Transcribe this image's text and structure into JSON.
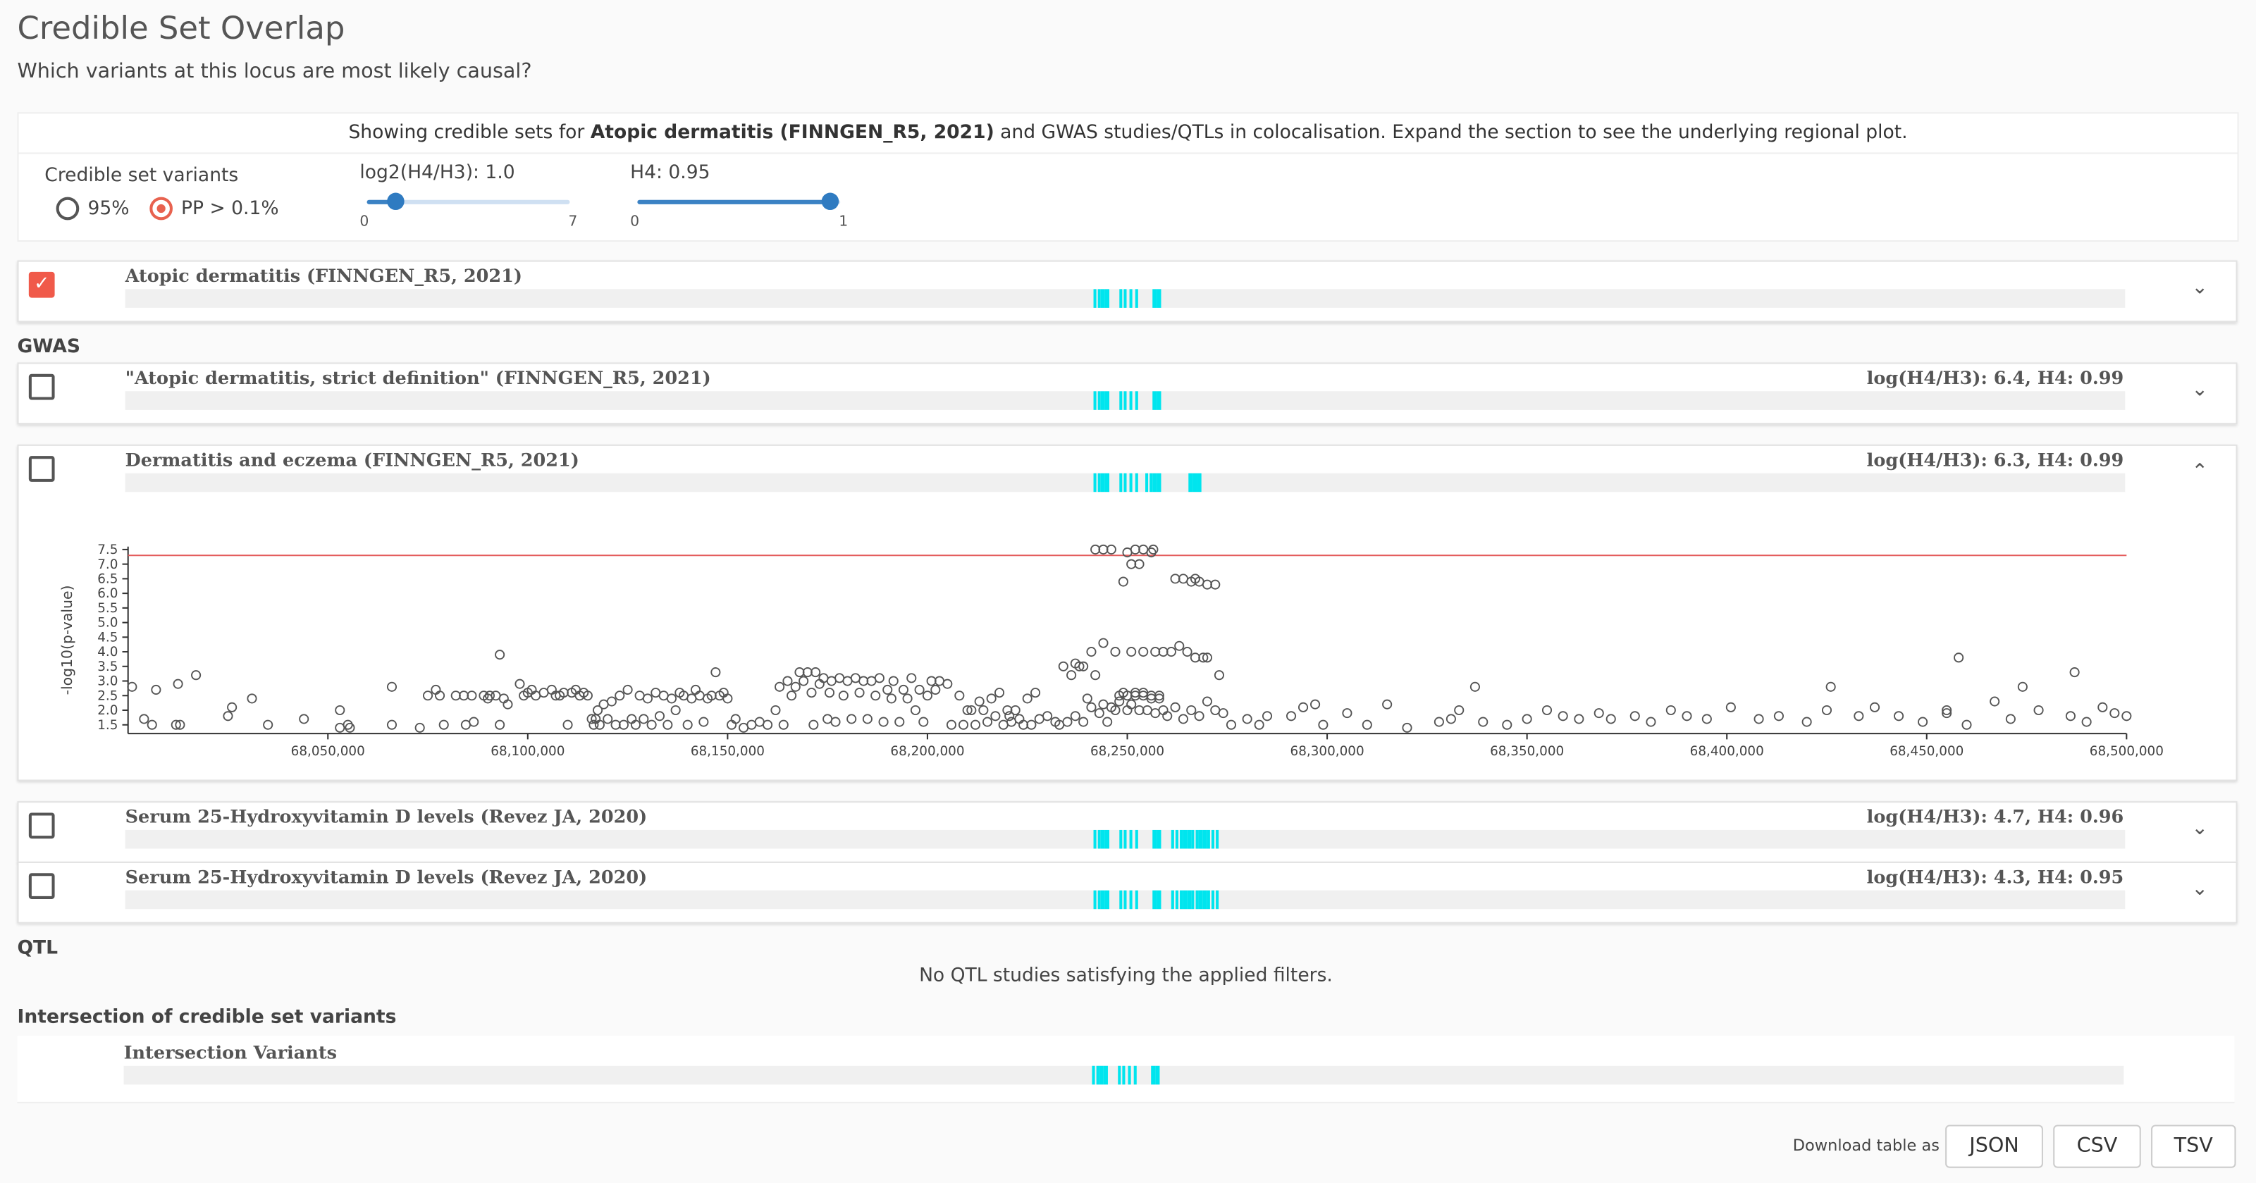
{
  "header": {
    "title": "Credible Set Overlap",
    "subtitle": "Which variants at this locus are most likely causal?"
  },
  "description": {
    "prefix": "Showing credible sets for ",
    "study": "Atopic dermatitis (FINNGEN_R5, 2021)",
    "suffix": " and GWAS studies/QTLs in colocalisation. Expand the section to see the underlying regional plot."
  },
  "controls": {
    "credible_set_label": "Credible set variants",
    "option_95": "95%",
    "option_pp": "PP > 0.1%",
    "selected": "PP > 0.1%",
    "log2_label": "log2(H4/H3): 1.0",
    "log2_value": 1.0,
    "log2_min": "0",
    "log2_max": "7",
    "h4_label": "H4: 0.95",
    "h4_value": 0.95,
    "h4_min": "0",
    "h4_max": "1"
  },
  "colors": {
    "track": "#00e5ee",
    "accent": "#f05a4a",
    "slider": "#2f7bc1",
    "threshold": "#e35a5a"
  },
  "lead_row": {
    "name": "Atopic dermatitis (FINNGEN_R5, 2021)",
    "checked": true,
    "bars": [
      68242000,
      68243000,
      68244000,
      68245000,
      68248500,
      68249500,
      68251000,
      68252500,
      68257000,
      68258000
    ]
  },
  "sections": {
    "gwas": "GWAS",
    "qtl": "QTL",
    "qtl_empty": "No QTL studies satisfying the applied filters.",
    "intersection": "Intersection of credible set variants"
  },
  "gwas_rows": [
    {
      "name": "\"Atopic dermatitis, strict definition\" (FINNGEN_R5, 2021)",
      "stat": "log(H4/H3): 6.4, H4: 0.99",
      "bars": [
        68242000,
        68243000,
        68244000,
        68245000,
        68248500,
        68249500,
        68251000,
        68252500,
        68257000,
        68258000
      ],
      "expanded": false
    },
    {
      "name": "Dermatitis and eczema (FINNGEN_R5, 2021)",
      "stat": "log(H4/H3): 6.3, H4: 0.99",
      "bars": [
        68242000,
        68243000,
        68244000,
        68245000,
        68248500,
        68249500,
        68251000,
        68252500,
        68255000,
        68256000,
        68257000,
        68258000,
        68266000,
        68267000,
        68268000
      ],
      "expanded": true
    },
    {
      "name": "Serum 25-Hydroxyvitamin D levels (Revez JA, 2020)",
      "stat": "log(H4/H3): 4.7, H4: 0.96",
      "bars": [
        68242000,
        68243000,
        68244000,
        68245000,
        68248500,
        68249500,
        68251000,
        68252500,
        68257000,
        68258000,
        68261500,
        68262500,
        68263500,
        68264500,
        68265500,
        68266500,
        68267500,
        68268500,
        68269500,
        68270500,
        68271500,
        68272500
      ],
      "expanded": false
    },
    {
      "name": "Serum 25-Hydroxyvitamin D levels (Revez JA, 2020)",
      "stat": "log(H4/H3): 4.3, H4: 0.95",
      "bars": [
        68242000,
        68243000,
        68244000,
        68245000,
        68248500,
        68249500,
        68251000,
        68252500,
        68257000,
        68258000,
        68261500,
        68262500,
        68263500,
        68264500,
        68265500,
        68266500,
        68267500,
        68268500,
        68269500,
        68270500,
        68271500,
        68272500
      ],
      "expanded": false
    }
  ],
  "intersection_row": {
    "name": "Intersection Variants",
    "bars": [
      68242000,
      68243000,
      68244000,
      68245000,
      68248500,
      68249500,
      68251000,
      68252500,
      68257000,
      68258000
    ]
  },
  "footer": {
    "download_label": "Download table as",
    "buttons": [
      "JSON",
      "CSV",
      "TSV"
    ]
  },
  "chart_data": {
    "type": "scatter",
    "xlabel": "",
    "ylabel": "-log10(p-value)",
    "xlim": [
      68000000,
      68500000
    ],
    "ylim": [
      1.2,
      7.6
    ],
    "xticks": [
      68050000,
      68100000,
      68150000,
      68200000,
      68250000,
      68300000,
      68350000,
      68400000,
      68450000,
      68500000
    ],
    "xtick_labels": [
      "68,050,000",
      "68,100,000",
      "68,150,000",
      "68,200,000",
      "68,250,000",
      "68,300,000",
      "68,350,000",
      "68,400,000",
      "68,450,000",
      "68,500,000"
    ],
    "yticks": [
      "1.5",
      "2.0",
      "2.5",
      "3.0",
      "3.5",
      "4.0",
      "4.5",
      "5.0",
      "5.5",
      "6.0",
      "6.5",
      "7.0",
      "7.5"
    ],
    "threshold": 7.3,
    "points": [
      [
        68001000,
        2.8
      ],
      [
        68004000,
        1.7
      ],
      [
        68006000,
        1.5
      ],
      [
        68007000,
        2.7
      ],
      [
        68012000,
        1.5
      ],
      [
        68012500,
        2.9
      ],
      [
        68013000,
        1.5
      ],
      [
        68017000,
        3.2
      ],
      [
        68025000,
        1.8
      ],
      [
        68026000,
        2.1
      ],
      [
        68031000,
        2.4
      ],
      [
        68035000,
        1.5
      ],
      [
        68044000,
        1.7
      ],
      [
        68053000,
        1.4
      ],
      [
        68053000,
        2.0
      ],
      [
        68055000,
        1.5
      ],
      [
        68055500,
        1.4
      ],
      [
        68066000,
        1.5
      ],
      [
        68066000,
        2.8
      ],
      [
        68073000,
        1.4
      ],
      [
        68075000,
        2.5
      ],
      [
        68077000,
        2.7
      ],
      [
        68078000,
        2.5
      ],
      [
        68079000,
        1.5
      ],
      [
        68082000,
        2.5
      ],
      [
        68084000,
        2.5
      ],
      [
        68084500,
        1.5
      ],
      [
        68086000,
        2.5
      ],
      [
        68086500,
        1.6
      ],
      [
        68089000,
        2.5
      ],
      [
        68090000,
        2.4
      ],
      [
        68090500,
        2.5
      ],
      [
        68092000,
        2.5
      ],
      [
        68093000,
        1.5
      ],
      [
        68093000,
        3.9
      ],
      [
        68094000,
        2.4
      ],
      [
        68095000,
        2.2
      ],
      [
        68098000,
        2.9
      ],
      [
        68099000,
        2.5
      ],
      [
        68100000,
        2.6
      ],
      [
        68101000,
        2.7
      ],
      [
        68102000,
        2.5
      ],
      [
        68104000,
        2.6
      ],
      [
        68106000,
        2.7
      ],
      [
        68107000,
        2.5
      ],
      [
        68108000,
        2.5
      ],
      [
        68109000,
        2.6
      ],
      [
        68110000,
        1.5
      ],
      [
        68111000,
        2.6
      ],
      [
        68112000,
        2.7
      ],
      [
        68113000,
        2.5
      ],
      [
        68114000,
        2.6
      ],
      [
        68115000,
        2.5
      ],
      [
        68116000,
        1.7
      ],
      [
        68116500,
        1.5
      ],
      [
        68117000,
        1.7
      ],
      [
        68117500,
        2.0
      ],
      [
        68118000,
        1.5
      ],
      [
        68119000,
        2.2
      ],
      [
        68120000,
        1.7
      ],
      [
        68121000,
        2.3
      ],
      [
        68122000,
        1.5
      ],
      [
        68123000,
        2.5
      ],
      [
        68124000,
        1.5
      ],
      [
        68125000,
        2.7
      ],
      [
        68126000,
        1.7
      ],
      [
        68127000,
        1.5
      ],
      [
        68128000,
        2.5
      ],
      [
        68129000,
        1.7
      ],
      [
        68130000,
        2.4
      ],
      [
        68131000,
        1.5
      ],
      [
        68132000,
        2.6
      ],
      [
        68133000,
        1.8
      ],
      [
        68134000,
        2.5
      ],
      [
        68135000,
        1.5
      ],
      [
        68136000,
        2.4
      ],
      [
        68137000,
        2.0
      ],
      [
        68138000,
        2.6
      ],
      [
        68139000,
        2.5
      ],
      [
        68140000,
        1.5
      ],
      [
        68141000,
        2.4
      ],
      [
        68142000,
        2.7
      ],
      [
        68143000,
        2.5
      ],
      [
        68144000,
        1.6
      ],
      [
        68145000,
        2.4
      ],
      [
        68146000,
        2.5
      ],
      [
        68147000,
        3.3
      ],
      [
        68148000,
        2.5
      ],
      [
        68149000,
        2.6
      ],
      [
        68150000,
        2.4
      ],
      [
        68151000,
        1.5
      ],
      [
        68152000,
        1.7
      ],
      [
        68154000,
        1.4
      ],
      [
        68156000,
        1.5
      ],
      [
        68158000,
        1.6
      ],
      [
        68160000,
        1.5
      ],
      [
        68162000,
        2.0
      ],
      [
        68163000,
        2.8
      ],
      [
        68164000,
        1.5
      ],
      [
        68165000,
        3.0
      ],
      [
        68166000,
        2.5
      ],
      [
        68167000,
        2.8
      ],
      [
        68168000,
        3.3
      ],
      [
        68169000,
        3.0
      ],
      [
        68170000,
        3.3
      ],
      [
        68171000,
        2.6
      ],
      [
        68171500,
        1.5
      ],
      [
        68172000,
        3.3
      ],
      [
        68173000,
        2.9
      ],
      [
        68174000,
        3.1
      ],
      [
        68175000,
        1.7
      ],
      [
        68175500,
        2.6
      ],
      [
        68176000,
        3.0
      ],
      [
        68177000,
        1.6
      ],
      [
        68178000,
        3.1
      ],
      [
        68179000,
        2.5
      ],
      [
        68180000,
        3.0
      ],
      [
        68181000,
        1.7
      ],
      [
        68182000,
        3.1
      ],
      [
        68183000,
        2.6
      ],
      [
        68184000,
        3.0
      ],
      [
        68185000,
        1.7
      ],
      [
        68186000,
        3.0
      ],
      [
        68187000,
        2.5
      ],
      [
        68188000,
        3.1
      ],
      [
        68189000,
        1.6
      ],
      [
        68190000,
        2.7
      ],
      [
        68191000,
        2.4
      ],
      [
        68191500,
        3.0
      ],
      [
        68193000,
        1.6
      ],
      [
        68194000,
        2.7
      ],
      [
        68195000,
        2.4
      ],
      [
        68196000,
        3.1
      ],
      [
        68197000,
        2.0
      ],
      [
        68198000,
        2.7
      ],
      [
        68199000,
        1.6
      ],
      [
        68200000,
        2.5
      ],
      [
        68201000,
        3.0
      ],
      [
        68202000,
        2.7
      ],
      [
        68203000,
        3.0
      ],
      [
        68205000,
        2.9
      ],
      [
        68206000,
        1.5
      ],
      [
        68208000,
        2.5
      ],
      [
        68209000,
        1.5
      ],
      [
        68210000,
        2.0
      ],
      [
        68211000,
        2.0
      ],
      [
        68212000,
        1.5
      ],
      [
        68213000,
        2.3
      ],
      [
        68214000,
        2.0
      ],
      [
        68215000,
        1.6
      ],
      [
        68216000,
        2.4
      ],
      [
        68217000,
        1.8
      ],
      [
        68218000,
        2.6
      ],
      [
        68219000,
        1.5
      ],
      [
        68220000,
        2.0
      ],
      [
        68220500,
        1.8
      ],
      [
        68221000,
        1.6
      ],
      [
        68222000,
        2.0
      ],
      [
        68223000,
        1.7
      ],
      [
        68224000,
        1.5
      ],
      [
        68225000,
        2.4
      ],
      [
        68226000,
        1.5
      ],
      [
        68227000,
        2.6
      ],
      [
        68228000,
        1.7
      ],
      [
        68230000,
        1.8
      ],
      [
        68232000,
        1.6
      ],
      [
        68233000,
        1.5
      ],
      [
        68234000,
        3.5
      ],
      [
        68235000,
        1.6
      ],
      [
        68236000,
        3.2
      ],
      [
        68237000,
        1.8
      ],
      [
        68238000,
        3.5
      ],
      [
        68239000,
        1.6
      ],
      [
        68240000,
        2.4
      ],
      [
        68241000,
        2.1
      ],
      [
        68242000,
        3.2
      ],
      [
        68243000,
        1.9
      ],
      [
        68244000,
        2.2
      ],
      [
        68245000,
        1.6
      ],
      [
        68246000,
        2.1
      ],
      [
        68247000,
        2.0
      ],
      [
        68248000,
        2.3
      ],
      [
        68249000,
        2.6
      ],
      [
        68250000,
        2.0
      ],
      [
        68251000,
        2.2
      ],
      [
        68252000,
        2.6
      ],
      [
        68253000,
        2.0
      ],
      [
        68254000,
        2.6
      ],
      [
        68255000,
        2.0
      ],
      [
        68256000,
        2.4
      ],
      [
        68257000,
        1.9
      ],
      [
        68258000,
        2.4
      ],
      [
        68259000,
        2.0
      ],
      [
        68260000,
        1.8
      ],
      [
        68262000,
        2.1
      ],
      [
        68264000,
        1.7
      ],
      [
        68266000,
        2.0
      ],
      [
        68268000,
        1.8
      ],
      [
        68270000,
        2.3
      ],
      [
        68272000,
        2.0
      ],
      [
        68274000,
        1.9
      ],
      [
        68276000,
        1.5
      ],
      [
        68280000,
        1.7
      ],
      [
        68283000,
        1.5
      ],
      [
        68285000,
        1.8
      ],
      [
        68291000,
        1.8
      ],
      [
        68294000,
        2.1
      ],
      [
        68297000,
        2.2
      ],
      [
        68299000,
        1.5
      ],
      [
        68305000,
        1.9
      ],
      [
        68310000,
        1.5
      ],
      [
        68315000,
        2.2
      ],
      [
        68320000,
        1.4
      ],
      [
        68328000,
        1.6
      ],
      [
        68331000,
        1.7
      ],
      [
        68333000,
        2.0
      ],
      [
        68339000,
        1.6
      ],
      [
        68345000,
        1.5
      ],
      [
        68350000,
        1.7
      ],
      [
        68355000,
        2.0
      ],
      [
        68359000,
        1.8
      ],
      [
        68363000,
        1.7
      ],
      [
        68368000,
        1.9
      ],
      [
        68371000,
        1.7
      ],
      [
        68377000,
        1.8
      ],
      [
        68381000,
        1.6
      ],
      [
        68386000,
        2.0
      ],
      [
        68390000,
        1.8
      ],
      [
        68395000,
        1.7
      ],
      [
        68401000,
        2.1
      ],
      [
        68408000,
        1.7
      ],
      [
        68413000,
        1.8
      ],
      [
        68420000,
        1.6
      ],
      [
        68425000,
        2.0
      ],
      [
        68433000,
        1.8
      ],
      [
        68437000,
        2.1
      ],
      [
        68443000,
        1.8
      ],
      [
        68449000,
        1.6
      ],
      [
        68455000,
        2.0
      ],
      [
        68460000,
        1.5
      ],
      [
        68467000,
        2.3
      ],
      [
        68471000,
        1.7
      ],
      [
        68478000,
        2.0
      ],
      [
        68486000,
        1.8
      ],
      [
        68490000,
        1.6
      ],
      [
        68494000,
        2.1
      ],
      [
        68497000,
        1.9
      ],
      [
        68500000,
        1.8
      ],
      [
        68242000,
        7.5
      ],
      [
        68244000,
        7.5
      ],
      [
        68246000,
        7.5
      ],
      [
        68250000,
        7.4
      ],
      [
        68252000,
        7.5
      ],
      [
        68254000,
        7.5
      ],
      [
        68256000,
        7.4
      ],
      [
        68249000,
        6.4
      ],
      [
        68251000,
        7.0
      ],
      [
        68253000,
        7.0
      ],
      [
        68256500,
        7.5
      ],
      [
        68262000,
        6.5
      ],
      [
        68264000,
        6.5
      ],
      [
        68266000,
        6.4
      ],
      [
        68268000,
        6.4
      ],
      [
        68270000,
        6.3
      ],
      [
        68272000,
        6.3
      ],
      [
        68267000,
        6.5
      ],
      [
        68241000,
        4.0
      ],
      [
        68244000,
        4.3
      ],
      [
        68247000,
        4.0
      ],
      [
        68251000,
        4.0
      ],
      [
        68254000,
        4.0
      ],
      [
        68257000,
        4.0
      ],
      [
        68259000,
        4.0
      ],
      [
        68261000,
        4.0
      ],
      [
        68263000,
        4.2
      ],
      [
        68265000,
        4.0
      ],
      [
        68267000,
        3.8
      ],
      [
        68269000,
        3.8
      ],
      [
        68270000,
        3.8
      ],
      [
        68273000,
        3.2
      ],
      [
        68237000,
        3.6
      ],
      [
        68239000,
        3.5
      ],
      [
        68248000,
        2.5
      ],
      [
        68250000,
        2.5
      ],
      [
        68252000,
        2.5
      ],
      [
        68254000,
        2.5
      ],
      [
        68256000,
        2.5
      ],
      [
        68258000,
        2.5
      ],
      [
        68487000,
        3.3
      ],
      [
        68458000,
        3.8
      ],
      [
        68474000,
        2.8
      ],
      [
        68426000,
        2.8
      ],
      [
        68337000,
        2.8
      ],
      [
        68455000,
        1.9
      ]
    ]
  }
}
